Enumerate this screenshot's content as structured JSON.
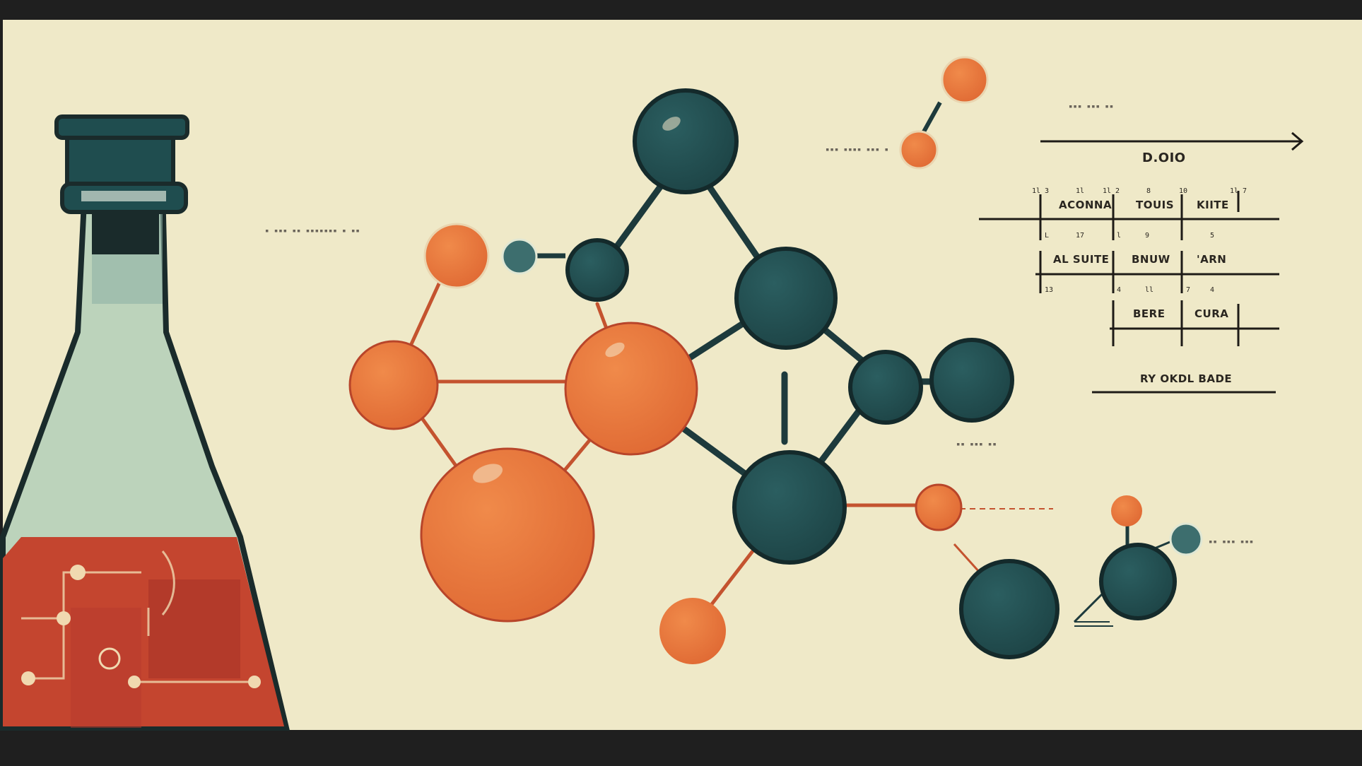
{
  "colors": {
    "paper": "#efe9c8",
    "frame": "#1f1f1f",
    "teal": "#1f4d4f",
    "orange": "#e8743a",
    "liquid": "#c4452f",
    "glass": "#bcd3bb",
    "ink": "#2a2620"
  },
  "diagram": {
    "title": "D.OIO",
    "footer": "RY OKDL BADE",
    "rows": [
      {
        "cells": [
          "ACONNA",
          "TOUIS",
          "KIITE"
        ]
      },
      {
        "cells": [
          "AL SUITE",
          "BNUW",
          "'ARN"
        ]
      },
      {
        "cells": [
          "BERE",
          "CURA"
        ]
      }
    ],
    "numbers": [
      "1l 3",
      "1l",
      "1l 2",
      "8",
      "10",
      "1l 7",
      "L",
      "17",
      "l",
      "9",
      "5",
      "13",
      "4",
      "ll",
      "7",
      "4"
    ]
  },
  "flask": {
    "icon": "erlenmeyer-flask-icon"
  },
  "molecule": {
    "icon": "molecule-icon"
  }
}
